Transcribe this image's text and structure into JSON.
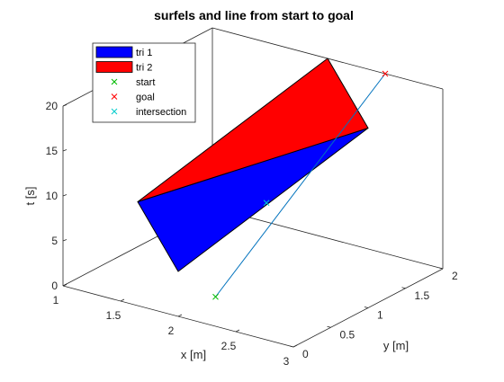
{
  "chart_data": {
    "type": "3d-surface-line",
    "title": "surfels and line from start to goal",
    "xlabel": "x [m]",
    "ylabel": "y [m]",
    "zlabel": "t [s]",
    "xlim": [
      1,
      3
    ],
    "ylim": [
      0,
      2
    ],
    "zlim": [
      0,
      20
    ],
    "grid": false,
    "box": true,
    "legend_placement": "top-left",
    "x_ticks": [
      "1",
      "1.5",
      "2",
      "2.5",
      "3"
    ],
    "y_ticks": [
      "0",
      "0.5",
      "1",
      "1.5",
      "2"
    ],
    "z_ticks": [
      "0",
      "5",
      "10",
      "15",
      "20"
    ],
    "colors": {
      "tri1": "#0000ff",
      "tri2": "#ff0000",
      "start": "#00bb00",
      "goal": "#ff0000",
      "intersection": "#00cccc",
      "line": "#0072bd"
    },
    "series": [
      {
        "name": "tri 1",
        "kind": "patch",
        "color": "#0000ff",
        "vertices": [
          [
            1,
            1,
            5
          ],
          [
            2,
            0,
            5
          ],
          [
            3,
            1,
            20
          ]
        ]
      },
      {
        "name": "tri 2",
        "kind": "patch",
        "color": "#ff0000",
        "vertices": [
          [
            1,
            1,
            5
          ],
          [
            2,
            2,
            20
          ],
          [
            3,
            1,
            20
          ]
        ]
      },
      {
        "name": "start",
        "kind": "marker",
        "marker": "x",
        "color": "#00bb00",
        "point": [
          2,
          0.5,
          0
        ]
      },
      {
        "name": "goal",
        "kind": "marker",
        "marker": "x",
        "color": "#ff0000",
        "point": [
          2.5,
          2,
          20
        ]
      },
      {
        "name": "intersection",
        "kind": "marker",
        "marker": "x",
        "color": "#00cccc",
        "point": [
          2.15,
          0.95,
          9
        ]
      }
    ],
    "line": {
      "from": [
        2,
        0.5,
        0
      ],
      "to": [
        2.5,
        2,
        20
      ],
      "color": "#0072bd"
    }
  }
}
